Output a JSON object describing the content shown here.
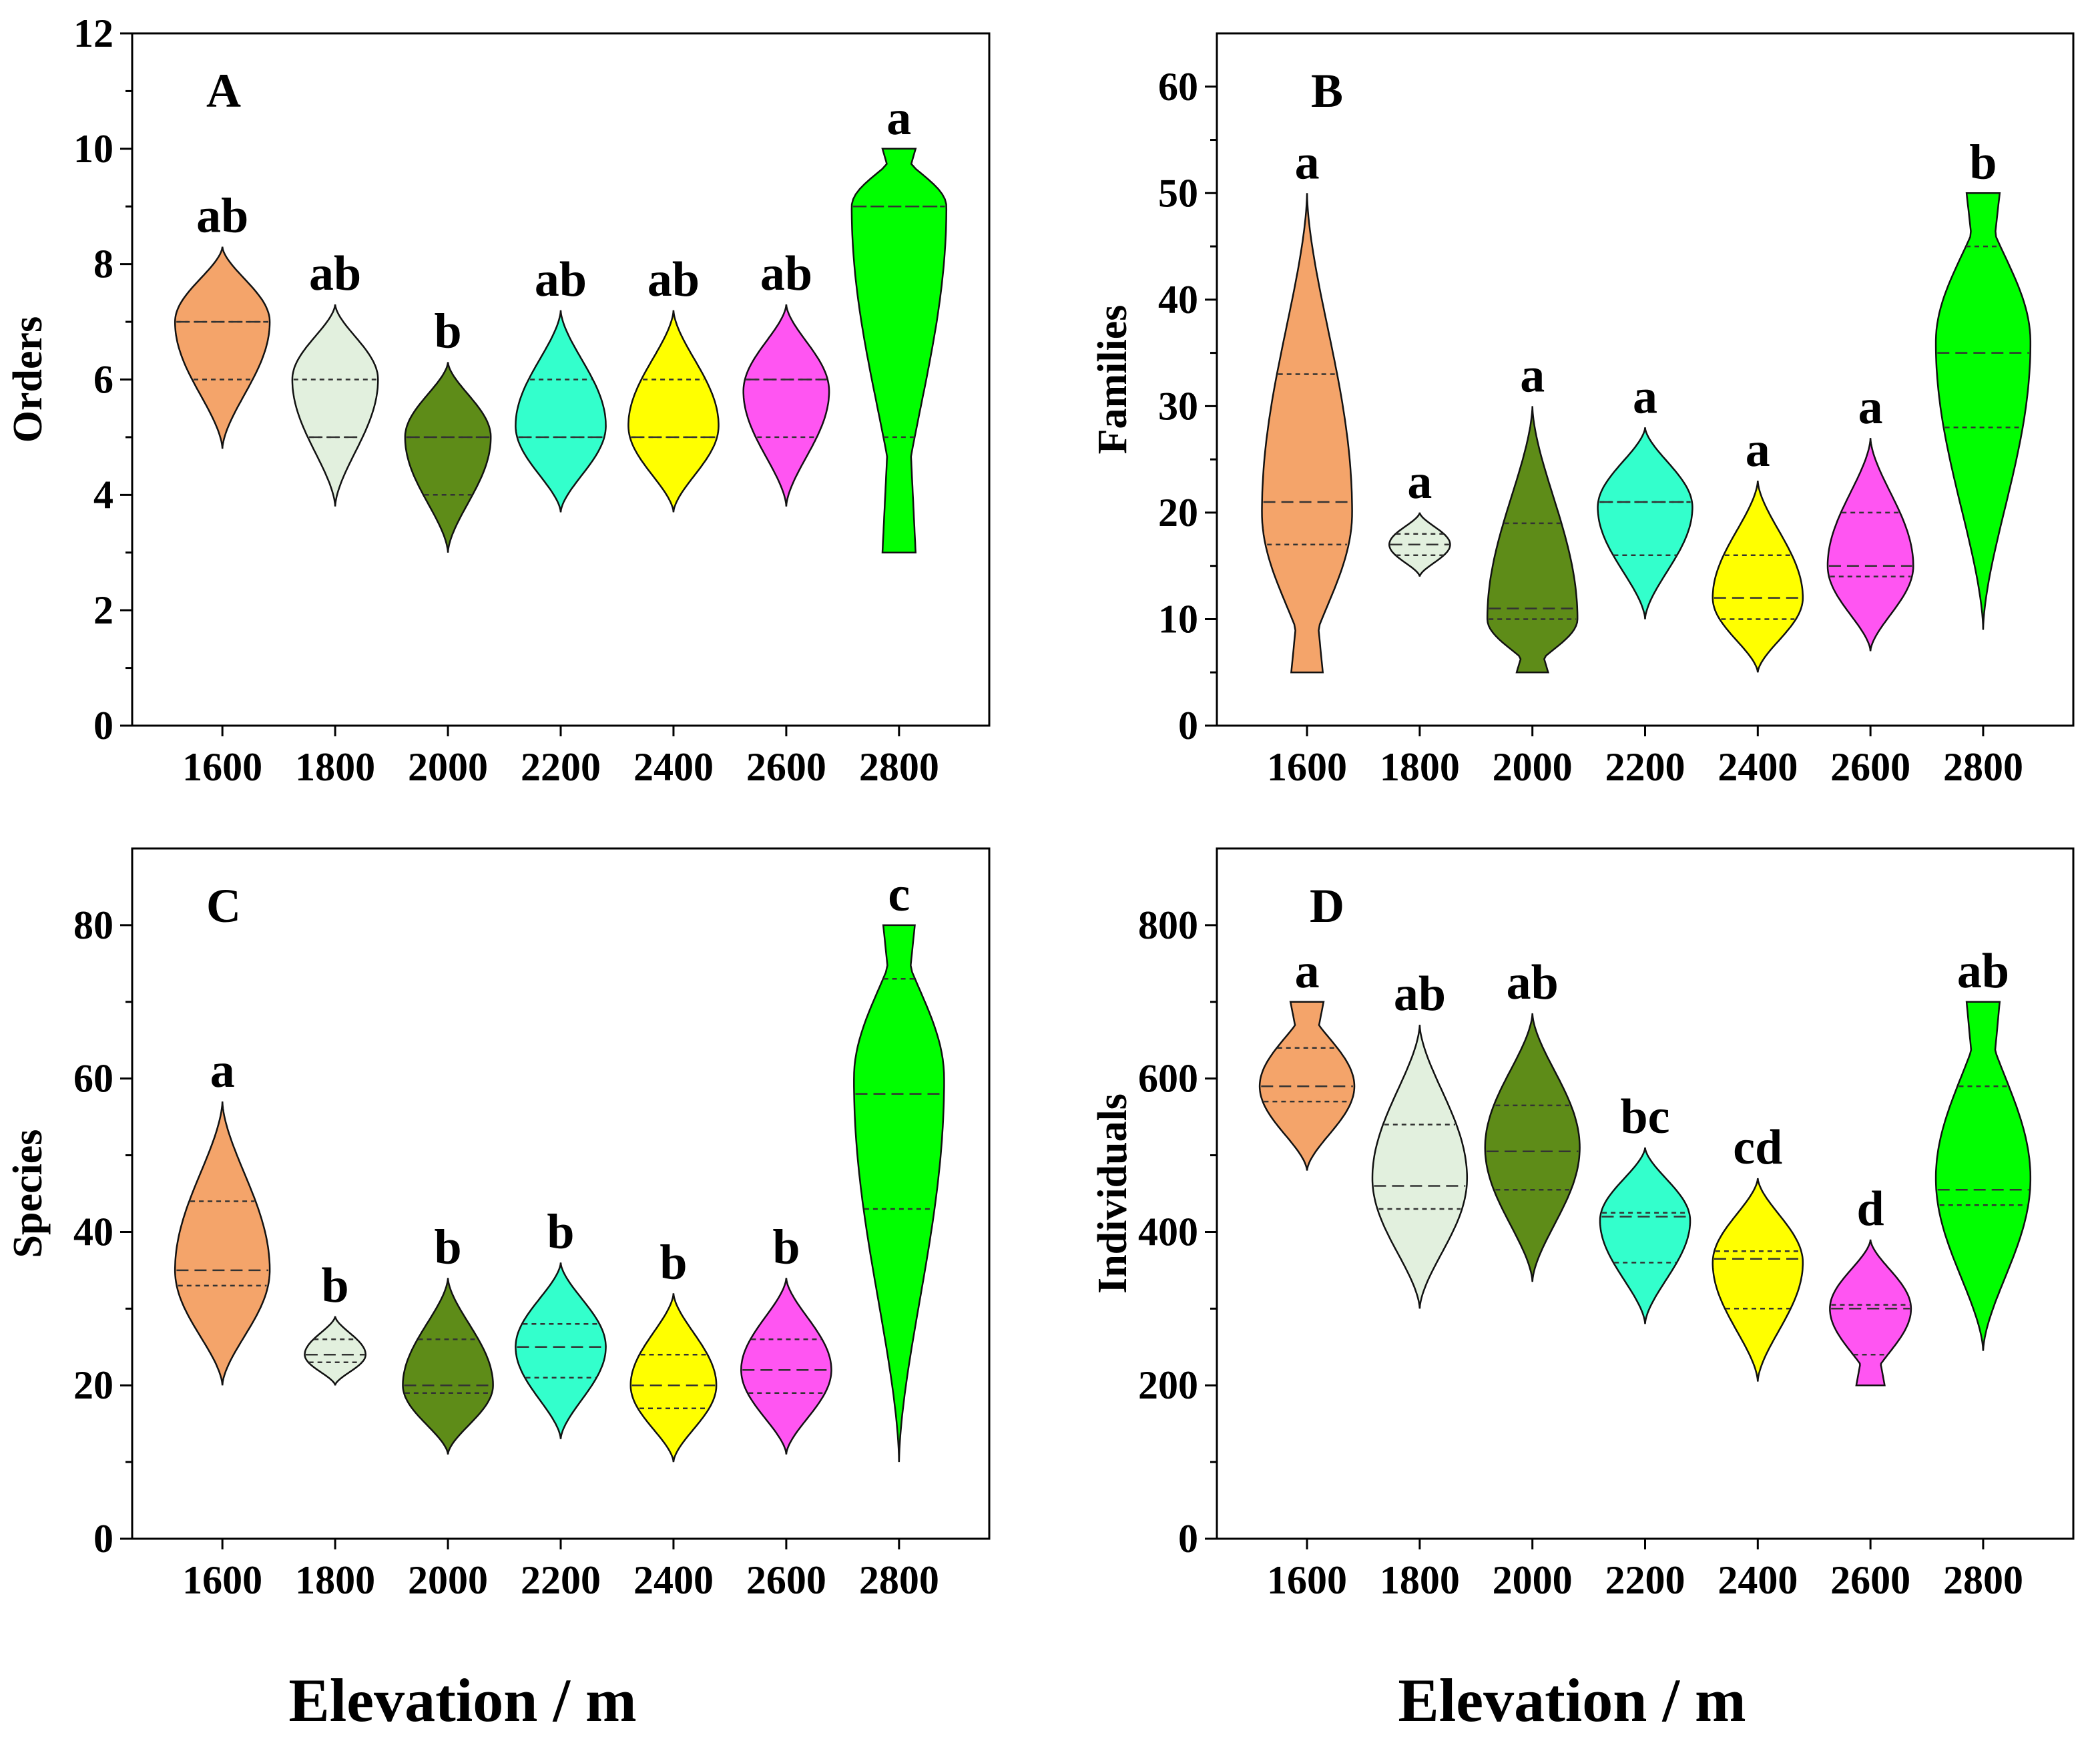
{
  "x_axis_titles": [
    "Elevation / m",
    "Elevation / m"
  ],
  "chart_data": [
    {
      "type": "violin",
      "panel": "A",
      "ylabel": "Orders",
      "ylim": [
        0,
        12
      ],
      "yticks": [
        0,
        2,
        4,
        6,
        8,
        10,
        12
      ],
      "categories": [
        "1600",
        "1800",
        "2000",
        "2200",
        "2400",
        "2600",
        "2800"
      ],
      "series": [
        {
          "name": "1600",
          "color": "#F4A46A",
          "min": 4.8,
          "max": 8.3,
          "median": 7,
          "q1": 6,
          "q3": 7,
          "mode": 7,
          "density_width": 0.42,
          "letter": "ab"
        },
        {
          "name": "1800",
          "color": "#E2F0DE",
          "min": 3.8,
          "max": 7.3,
          "median": 5,
          "q1": 5,
          "q3": 6,
          "mode": 6,
          "density_width": 0.38,
          "letter": "ab"
        },
        {
          "name": "2000",
          "color": "#5E8C18",
          "min": 3.0,
          "max": 6.3,
          "median": 5,
          "q1": 4,
          "q3": 5,
          "mode": 5,
          "density_width": 0.38,
          "letter": "b"
        },
        {
          "name": "2200",
          "color": "#33FFCC",
          "min": 3.7,
          "max": 7.2,
          "median": 5,
          "q1": 5,
          "q3": 6,
          "mode": 5.2,
          "density_width": 0.4,
          "letter": "ab"
        },
        {
          "name": "2400",
          "color": "#FFFF00",
          "min": 3.7,
          "max": 7.2,
          "median": 5,
          "q1": 5,
          "q3": 6,
          "mode": 5.2,
          "density_width": 0.4,
          "letter": "ab"
        },
        {
          "name": "2600",
          "color": "#FF55F2",
          "min": 3.8,
          "max": 7.3,
          "median": 6,
          "q1": 5,
          "q3": 6,
          "mode": 5.8,
          "density_width": 0.38,
          "letter": "ab"
        },
        {
          "name": "2800",
          "color": "#00FF00",
          "min": 3.0,
          "max": 10.0,
          "median": 9,
          "q1": 5,
          "q3": 9,
          "mode": 9,
          "density_width": 0.42,
          "letter": "a",
          "flat_top": true,
          "flat_bottom": true
        }
      ]
    },
    {
      "type": "violin",
      "panel": "B",
      "ylabel": "Families",
      "ylim": [
        0,
        65
      ],
      "yticks": [
        0,
        10,
        20,
        30,
        40,
        50,
        60
      ],
      "categories": [
        "1600",
        "1800",
        "2000",
        "2200",
        "2400",
        "2600",
        "2800"
      ],
      "series": [
        {
          "name": "1600",
          "color": "#F4A46A",
          "min": 5,
          "max": 50,
          "median": 21,
          "q1": 17,
          "q3": 33,
          "mode": 20,
          "density_width": 0.4,
          "letter": "a",
          "flat_bottom": true
        },
        {
          "name": "1800",
          "color": "#E2F0DE",
          "min": 14,
          "max": 20,
          "median": 17,
          "q1": 16,
          "q3": 18,
          "mode": 17,
          "density_width": 0.27,
          "letter": "a"
        },
        {
          "name": "2000",
          "color": "#5E8C18",
          "min": 5,
          "max": 30,
          "median": 11,
          "q1": 10,
          "q3": 19,
          "mode": 10,
          "density_width": 0.4,
          "letter": "a",
          "flat_bottom": true
        },
        {
          "name": "2200",
          "color": "#33FFCC",
          "min": 10,
          "max": 28,
          "median": 21,
          "q1": 16,
          "q3": 21,
          "mode": 20.5,
          "density_width": 0.42,
          "letter": "a"
        },
        {
          "name": "2400",
          "color": "#FFFF00",
          "min": 5,
          "max": 23,
          "median": 12,
          "q1": 10,
          "q3": 16,
          "mode": 12,
          "density_width": 0.4,
          "letter": "a"
        },
        {
          "name": "2600",
          "color": "#FF55F2",
          "min": 7,
          "max": 27,
          "median": 15,
          "q1": 14,
          "q3": 20,
          "mode": 15,
          "density_width": 0.38,
          "letter": "a"
        },
        {
          "name": "2800",
          "color": "#00FF00",
          "min": 9,
          "max": 50,
          "median": 35,
          "q1": 28,
          "q3": 45,
          "mode": 36,
          "density_width": 0.42,
          "letter": "b",
          "flat_top": true
        }
      ]
    },
    {
      "type": "violin",
      "panel": "C",
      "ylabel": "Species",
      "ylim": [
        0,
        90
      ],
      "yticks": [
        0,
        20,
        40,
        60,
        80
      ],
      "categories": [
        "1600",
        "1800",
        "2000",
        "2200",
        "2400",
        "2600",
        "2800"
      ],
      "series": [
        {
          "name": "1600",
          "color": "#F4A46A",
          "min": 20,
          "max": 57,
          "median": 35,
          "q1": 33,
          "q3": 44,
          "mode": 35,
          "density_width": 0.42,
          "letter": "a"
        },
        {
          "name": "1800",
          "color": "#E2F0DE",
          "min": 20,
          "max": 29,
          "median": 24,
          "q1": 23,
          "q3": 26,
          "mode": 24,
          "density_width": 0.27,
          "letter": "b"
        },
        {
          "name": "2000",
          "color": "#5E8C18",
          "min": 11,
          "max": 34,
          "median": 20,
          "q1": 19,
          "q3": 26,
          "mode": 20,
          "density_width": 0.4,
          "letter": "b"
        },
        {
          "name": "2200",
          "color": "#33FFCC",
          "min": 13,
          "max": 36,
          "median": 25,
          "q1": 21,
          "q3": 28,
          "mode": 25,
          "density_width": 0.4,
          "letter": "b"
        },
        {
          "name": "2400",
          "color": "#FFFF00",
          "min": 10,
          "max": 32,
          "median": 20,
          "q1": 17,
          "q3": 24,
          "mode": 20,
          "density_width": 0.38,
          "letter": "b"
        },
        {
          "name": "2600",
          "color": "#FF55F2",
          "min": 11,
          "max": 34,
          "median": 22,
          "q1": 19,
          "q3": 26,
          "mode": 22,
          "density_width": 0.4,
          "letter": "b"
        },
        {
          "name": "2800",
          "color": "#00FF00",
          "min": 10,
          "max": 80,
          "median": 58,
          "q1": 43,
          "q3": 73,
          "mode": 60,
          "density_width": 0.4,
          "letter": "c",
          "flat_top": true
        }
      ]
    },
    {
      "type": "violin",
      "panel": "D",
      "ylabel": "Individuals",
      "ylim": [
        0,
        900
      ],
      "yticks": [
        0,
        200,
        400,
        600,
        800
      ],
      "categories": [
        "1600",
        "1800",
        "2000",
        "2200",
        "2400",
        "2600",
        "2800"
      ],
      "series": [
        {
          "name": "1600",
          "color": "#F4A46A",
          "min": 480,
          "max": 700,
          "median": 590,
          "q1": 570,
          "q3": 640,
          "mode": 590,
          "density_width": 0.42,
          "letter": "a",
          "flat_top": true
        },
        {
          "name": "1800",
          "color": "#E2F0DE",
          "min": 300,
          "max": 670,
          "median": 460,
          "q1": 430,
          "q3": 540,
          "mode": 470,
          "density_width": 0.42,
          "letter": "ab"
        },
        {
          "name": "2000",
          "color": "#5E8C18",
          "min": 335,
          "max": 685,
          "median": 505,
          "q1": 455,
          "q3": 565,
          "mode": 510,
          "density_width": 0.42,
          "letter": "ab"
        },
        {
          "name": "2200",
          "color": "#33FFCC",
          "min": 280,
          "max": 510,
          "median": 420,
          "q1": 360,
          "q3": 425,
          "mode": 415,
          "density_width": 0.4,
          "letter": "bc"
        },
        {
          "name": "2400",
          "color": "#FFFF00",
          "min": 205,
          "max": 470,
          "median": 365,
          "q1": 300,
          "q3": 375,
          "mode": 360,
          "density_width": 0.4,
          "letter": "cd"
        },
        {
          "name": "2600",
          "color": "#FF55F2",
          "min": 200,
          "max": 390,
          "median": 300,
          "q1": 240,
          "q3": 305,
          "mode": 300,
          "density_width": 0.36,
          "letter": "d",
          "flat_bottom": true
        },
        {
          "name": "2800",
          "color": "#00FF00",
          "min": 245,
          "max": 700,
          "median": 455,
          "q1": 435,
          "q3": 590,
          "mode": 470,
          "density_width": 0.42,
          "letter": "ab",
          "flat_top": true
        }
      ]
    }
  ]
}
